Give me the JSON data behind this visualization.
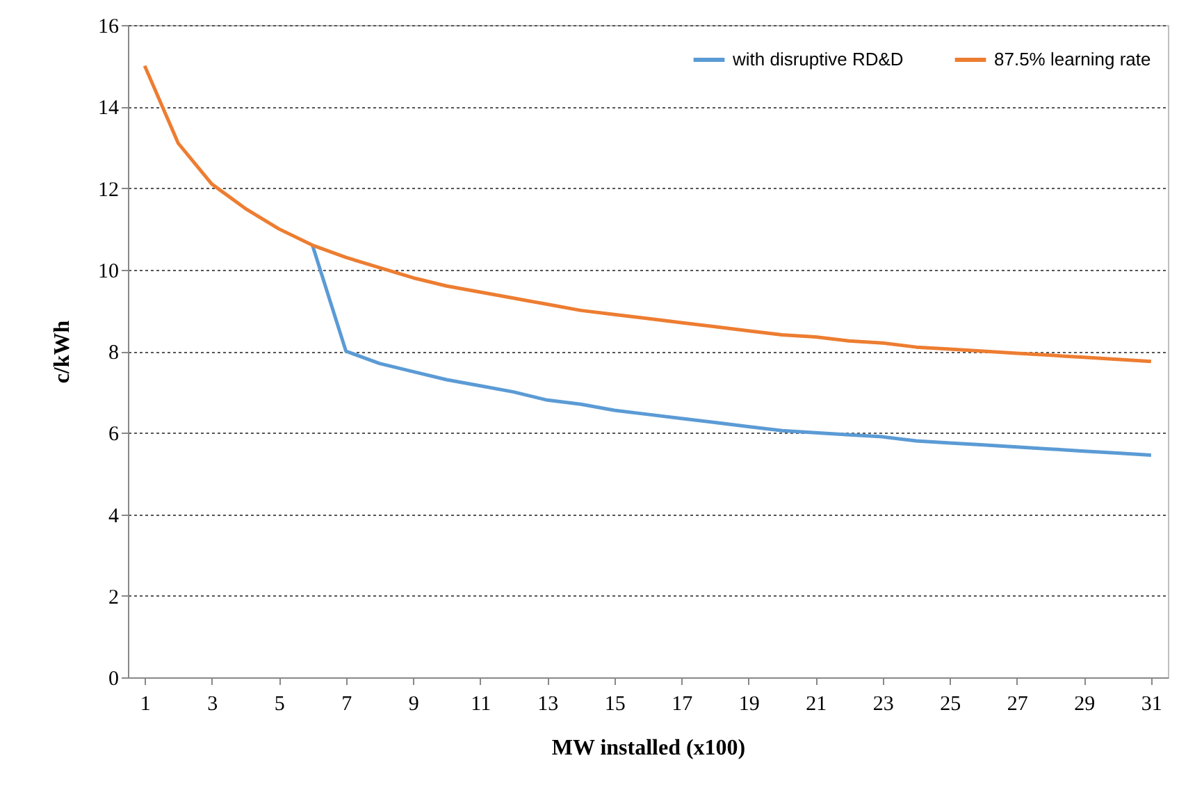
{
  "chart_data": {
    "type": "line",
    "xlabel": "MW installed  (x100)",
    "ylabel": "c/kWh",
    "x": [
      1,
      2,
      3,
      4,
      5,
      6,
      7,
      8,
      9,
      10,
      11,
      12,
      13,
      14,
      15,
      16,
      17,
      18,
      19,
      20,
      21,
      22,
      23,
      24,
      25,
      26,
      27,
      28,
      29,
      30,
      31
    ],
    "xlim": [
      0.5,
      31.5
    ],
    "xticks": [
      1,
      3,
      5,
      7,
      9,
      11,
      13,
      15,
      17,
      19,
      21,
      23,
      25,
      27,
      29,
      31
    ],
    "ylim": [
      0,
      16
    ],
    "yticks": [
      0,
      2,
      4,
      6,
      8,
      10,
      12,
      14,
      16
    ],
    "grid": "y",
    "legend": "top right",
    "line_style": "solid",
    "marker": "none",
    "series": [
      {
        "name": "with disruptive RD&D",
        "color": "#5b9bd5",
        "values": [
          null,
          null,
          null,
          null,
          null,
          10.6,
          8.0,
          7.7,
          7.5,
          7.3,
          7.15,
          7.0,
          6.8,
          6.7,
          6.55,
          6.45,
          6.35,
          6.25,
          6.15,
          6.05,
          6.0,
          5.95,
          5.9,
          5.8,
          5.75,
          5.7,
          5.65,
          5.6,
          5.55,
          5.5,
          5.45
        ]
      },
      {
        "name": "87.5% learning rate",
        "color": "#ed7d31",
        "values": [
          15.0,
          13.1,
          12.1,
          11.5,
          11.0,
          10.6,
          10.3,
          10.05,
          9.8,
          9.6,
          9.45,
          9.3,
          9.15,
          9.0,
          8.9,
          8.8,
          8.7,
          8.6,
          8.5,
          8.4,
          8.35,
          8.25,
          8.2,
          8.1,
          8.05,
          8.0,
          7.95,
          7.9,
          7.85,
          7.8,
          7.75
        ]
      }
    ]
  }
}
